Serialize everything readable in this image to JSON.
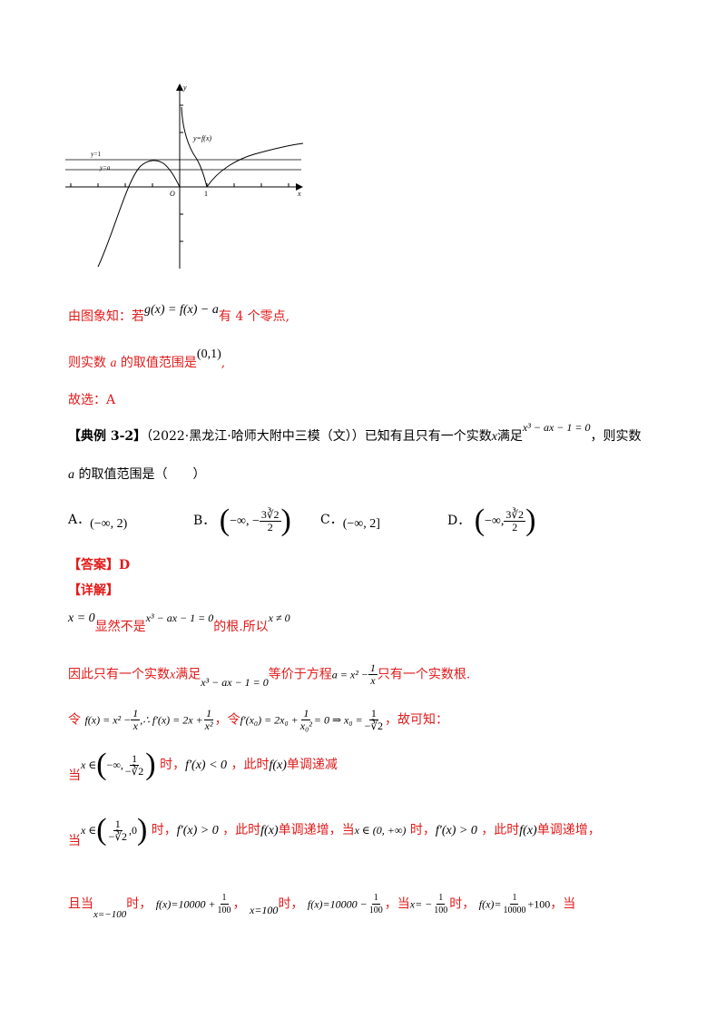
{
  "figure": {
    "label_y": "y",
    "label_x": "x",
    "label_fx": "y=f(x)",
    "label_y1": "y=1",
    "label_ya": "y=a",
    "label_O": "O",
    "label_1": "1"
  },
  "lines": {
    "l1_text1": "由图象知：若",
    "l1_math": "g(x) = f(x) − a",
    "l1_text2": "有 4 个零点,",
    "l2_text1": "则实数",
    "l2_a": "a",
    "l2_text2": "的取值范围是",
    "l2_math": "(0,1)",
    "l2_text3": ",",
    "l3_text": "故选：A",
    "ex_bracket": "【典例 3-2】",
    "ex_source": "（2022·黑龙江·哈师大附中三模（文））已知有且只有一个实数",
    "ex_x": "x",
    "ex_text2": "满足",
    "ex_eq": "x³ − ax − 1 = 0",
    "ex_text3": "，则实数",
    "ex_line2_a": "a",
    "ex_line2_text": "的取值范围是（　　）",
    "optA_label": "A．",
    "optA": "(−∞, 2)",
    "optB_label": "B．",
    "optB_pre": "−∞, −",
    "optB_num": "3∛2",
    "optB_den": "2",
    "optC_label": "C．",
    "optC": "(−∞, 2]",
    "optD_label": "D．",
    "optD_pre": "−∞,",
    "optD_num": "3∛2",
    "optD_den": "2",
    "answer": "【答案】D",
    "detail": "【详解】",
    "d1_math1": "x = 0",
    "d1_text1": "显然不是",
    "d1_math2": "x³ − ax − 1 = 0",
    "d1_text2": "的根.所以",
    "d1_math3": "x ≠ 0",
    "d2_text1": "因此只有一个实数",
    "d2_x": "x",
    "d2_text2": "满足",
    "d2_math1": "x³ − ax − 1 = 0",
    "d2_text3": "等价于方程",
    "d2_math2a": "a = x² −",
    "d2_frac_num": "1",
    "d2_frac_den": "x",
    "d2_text4": "只有一个实数根.",
    "d3_ling": "令",
    "d3_m1": "f(x) = x² −",
    "d3_f1n": "1",
    "d3_f1d": "x",
    "d3_m2": ",∴ f′(x) = 2x +",
    "d3_f2n": "1",
    "d3_f2d": "x²",
    "d3_comma": "，",
    "d3_ling2": "令",
    "d3_m3": "f′(x₀) = 2x₀ +",
    "d3_f3n": "1",
    "d3_f3d": "x₀²",
    "d3_m4": "= 0 ⇒ x₀ =",
    "d3_f4n": "1",
    "d3_f4d": "−∛2",
    "d3_text": "，故可知：",
    "d4_dang": "当",
    "d4_m1": "x ∈",
    "d4_pre": "−∞,",
    "d4_fn": "1",
    "d4_fd": "−∛2",
    "d4_text1": "时，",
    "d4_m2": "f′(x) < 0",
    "d4_text2": "，此时",
    "d4_m3": "f(x)",
    "d4_text3": "单调递减",
    "d5_dang": "当",
    "d5_m1": "x ∈",
    "d5_fn": "1",
    "d5_fd": "−∛2",
    "d5_post": ",0",
    "d5_text1": "时，",
    "d5_m2": "f′(x) > 0",
    "d5_text2": "，此时",
    "d5_m3": "f(x)",
    "d5_text3": "单调递增，当",
    "d5_m4": "x ∈ (0, +∞)",
    "d5_text4": "时，",
    "d5_m5": "f′(x) > 0",
    "d5_text5": "，此时",
    "d5_m6": "f(x)",
    "d5_text6": "单调递增，",
    "d6_qie": "且当",
    "d6_m1": "x=−100",
    "d6_shi1": "时，",
    "d6_m2": "f(x)=10000 +",
    "d6_f1n": "1",
    "d6_f1d": "100",
    "d6_c1": "，",
    "d6_m3": "x=100",
    "d6_shi2": "时，",
    "d6_m4": "f(x)=10000 −",
    "d6_f2n": "1",
    "d6_f2d": "100",
    "d6_c2": "，当",
    "d6_m5": "x= −",
    "d6_f3n": "1",
    "d6_f3d": "100",
    "d6_shi3": "时，",
    "d6_m6": "f(x)=",
    "d6_f4n": "1",
    "d6_f4d": "10000",
    "d6_m7": "+100",
    "d6_end": "，当"
  }
}
